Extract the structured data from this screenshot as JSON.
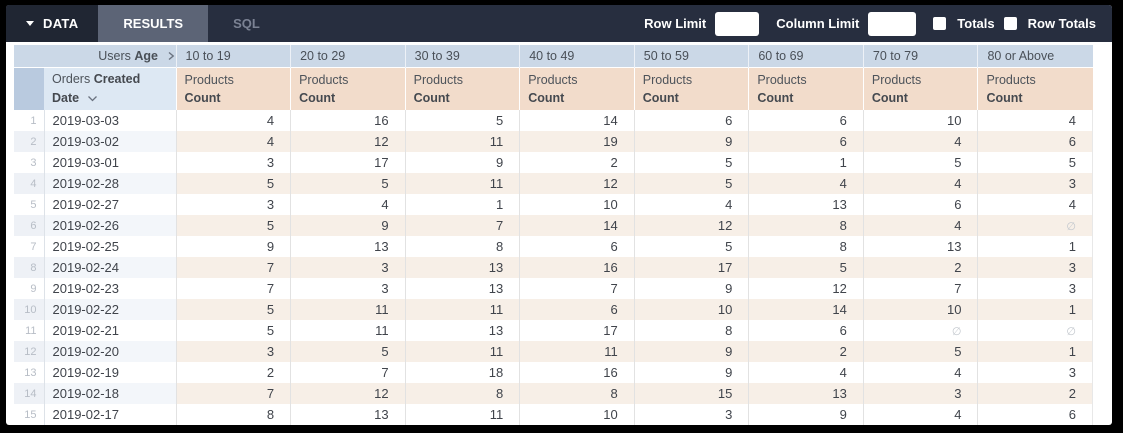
{
  "topbar": {
    "data_tab": "DATA",
    "results_tab": "RESULTS",
    "sql_tab": "SQL",
    "row_limit_label": "Row Limit",
    "row_limit_value": "",
    "column_limit_label": "Column Limit",
    "column_limit_value": "",
    "totals_label": "Totals",
    "totals_checked": false,
    "row_totals_label": "Row Totals",
    "row_totals_checked": false
  },
  "table": {
    "pivot_dimension": {
      "view": "Users",
      "field": "Age"
    },
    "pivot_values": [
      "10 to 19",
      "20 to 29",
      "30 to 39",
      "40 to 49",
      "50 to 59",
      "60 to 69",
      "70 to 79",
      "80 or Above"
    ],
    "row_dimension": {
      "view": "Orders",
      "field": "Created Date"
    },
    "measure": {
      "view": "Products",
      "field": "Count"
    },
    "null_symbol": "∅",
    "rows": [
      {
        "num": "1",
        "date": "2019-03-03",
        "values": [
          4,
          16,
          5,
          14,
          6,
          6,
          10,
          4
        ]
      },
      {
        "num": "2",
        "date": "2019-03-02",
        "values": [
          4,
          12,
          11,
          19,
          9,
          6,
          4,
          6
        ]
      },
      {
        "num": "3",
        "date": "2019-03-01",
        "values": [
          3,
          17,
          9,
          2,
          5,
          1,
          5,
          5
        ]
      },
      {
        "num": "4",
        "date": "2019-02-28",
        "values": [
          5,
          5,
          11,
          12,
          5,
          4,
          4,
          3
        ]
      },
      {
        "num": "5",
        "date": "2019-02-27",
        "values": [
          3,
          4,
          1,
          10,
          4,
          13,
          6,
          4
        ]
      },
      {
        "num": "6",
        "date": "2019-02-26",
        "values": [
          5,
          9,
          7,
          14,
          12,
          8,
          4,
          null
        ]
      },
      {
        "num": "7",
        "date": "2019-02-25",
        "values": [
          9,
          13,
          8,
          6,
          5,
          8,
          13,
          1
        ]
      },
      {
        "num": "8",
        "date": "2019-02-24",
        "values": [
          7,
          3,
          13,
          16,
          17,
          5,
          2,
          3
        ]
      },
      {
        "num": "9",
        "date": "2019-02-23",
        "values": [
          7,
          3,
          13,
          7,
          9,
          12,
          7,
          3
        ]
      },
      {
        "num": "10",
        "date": "2019-02-22",
        "values": [
          5,
          11,
          11,
          6,
          10,
          14,
          10,
          1
        ]
      },
      {
        "num": "11",
        "date": "2019-02-21",
        "values": [
          5,
          11,
          13,
          17,
          8,
          6,
          null,
          null
        ]
      },
      {
        "num": "12",
        "date": "2019-02-20",
        "values": [
          3,
          5,
          11,
          11,
          9,
          2,
          5,
          1
        ]
      },
      {
        "num": "13",
        "date": "2019-02-19",
        "values": [
          2,
          7,
          18,
          16,
          9,
          4,
          4,
          3
        ]
      },
      {
        "num": "14",
        "date": "2019-02-18",
        "values": [
          7,
          12,
          8,
          8,
          15,
          13,
          3,
          2
        ]
      },
      {
        "num": "15",
        "date": "2019-02-17",
        "values": [
          8,
          13,
          11,
          10,
          3,
          9,
          4,
          6
        ]
      }
    ]
  },
  "colors": {
    "topbar_bg": "#272e3f",
    "data_tab_bg": "#202633",
    "results_tab_bg": "#5c6476",
    "pivot_header_bg": "#cbd8e7",
    "dimension_header_bg": "#dde8f3",
    "gutter_header_bg": "#b9cadf",
    "measure_header_bg": "#f2dccb",
    "even_row_measure_bg": "#f7efe7",
    "even_row_dimension_bg": "#f3f6fa"
  }
}
